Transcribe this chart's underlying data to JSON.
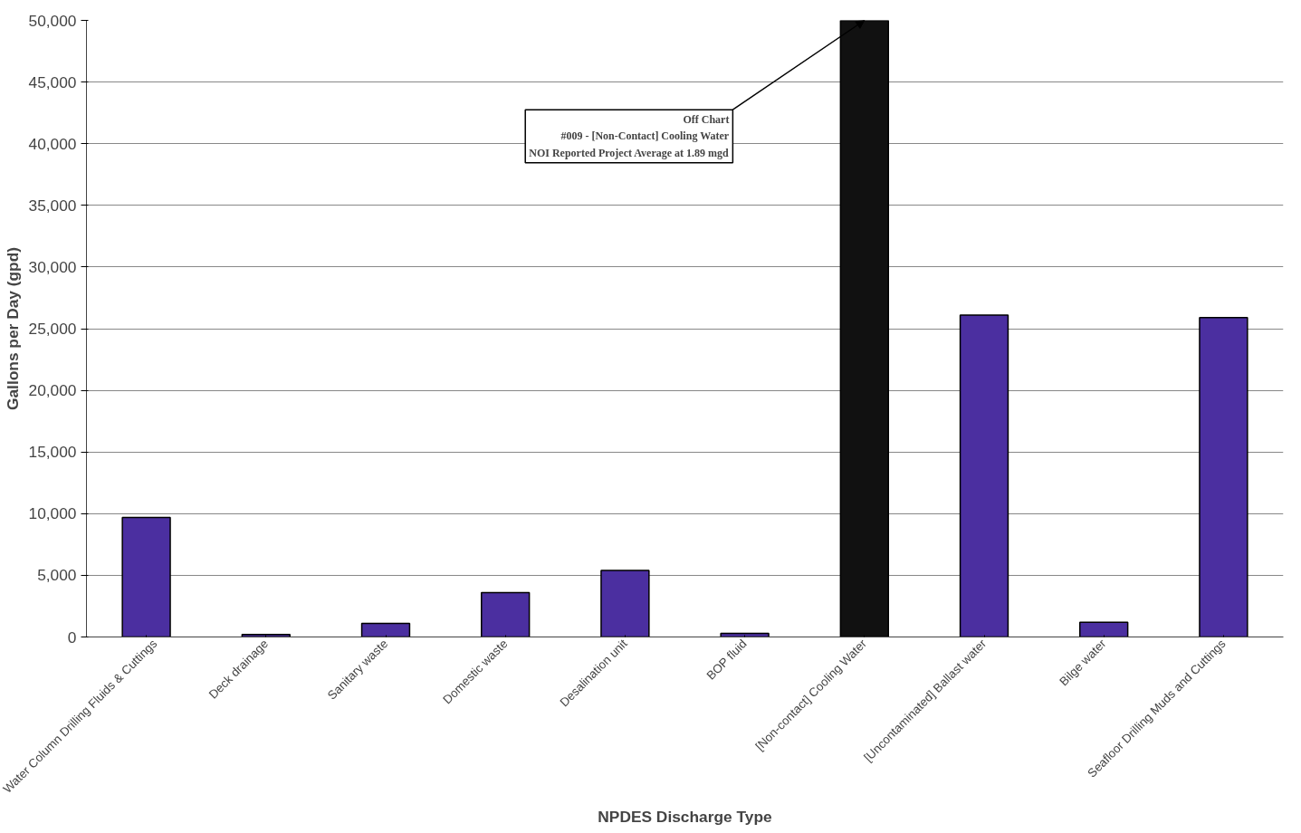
{
  "chart_data": {
    "type": "bar",
    "xlabel": "NPDES Discharge Type",
    "ylabel": "Gallons per Day (gpd)",
    "categories": [
      "Water Column Drilling Fluids & Cuttings",
      "Deck drainage",
      "Sanitary waste",
      "Domestic waste",
      "Desalination unit",
      "BOP fluid",
      "[Non-contact] Cooling Water",
      "[Uncontaminated] Ballast water",
      "Bilge water",
      "Seafloor Drilling Muds and Cuttings"
    ],
    "values": [
      9700,
      200,
      1100,
      3600,
      5400,
      300,
      50000,
      26100,
      1200,
      25900
    ],
    "colors": [
      "#4b2fa0",
      "#4b2fa0",
      "#4b2fa0",
      "#4b2fa0",
      "#4b2fa0",
      "#4b2fa0",
      "#111111",
      "#4b2fa0",
      "#4b2fa0",
      "#4b2fa0"
    ],
    "ylim": [
      0,
      50000
    ],
    "yticks": [
      {
        "value": 0,
        "label": "0"
      },
      {
        "value": 5000,
        "label": "5,000"
      },
      {
        "value": 10000,
        "label": "10,000"
      },
      {
        "value": 15000,
        "label": "15,000"
      },
      {
        "value": 20000,
        "label": "20,000"
      },
      {
        "value": 25000,
        "label": "25,000"
      },
      {
        "value": 30000,
        "label": "30,000"
      },
      {
        "value": 35000,
        "label": "35,000"
      },
      {
        "value": 40000,
        "label": "40,000"
      },
      {
        "value": 45000,
        "label": "45,000"
      },
      {
        "value": 50000,
        "label": "50,000"
      }
    ],
    "grid": "y",
    "annotations": [
      {
        "text": "Off Chart\n#009 - [Non-Contact] Cooling Water\nNOI Reported Project Average at 1.89 mgd",
        "x": "[Non-contact] Cooling Water",
        "y": 50000
      }
    ]
  }
}
